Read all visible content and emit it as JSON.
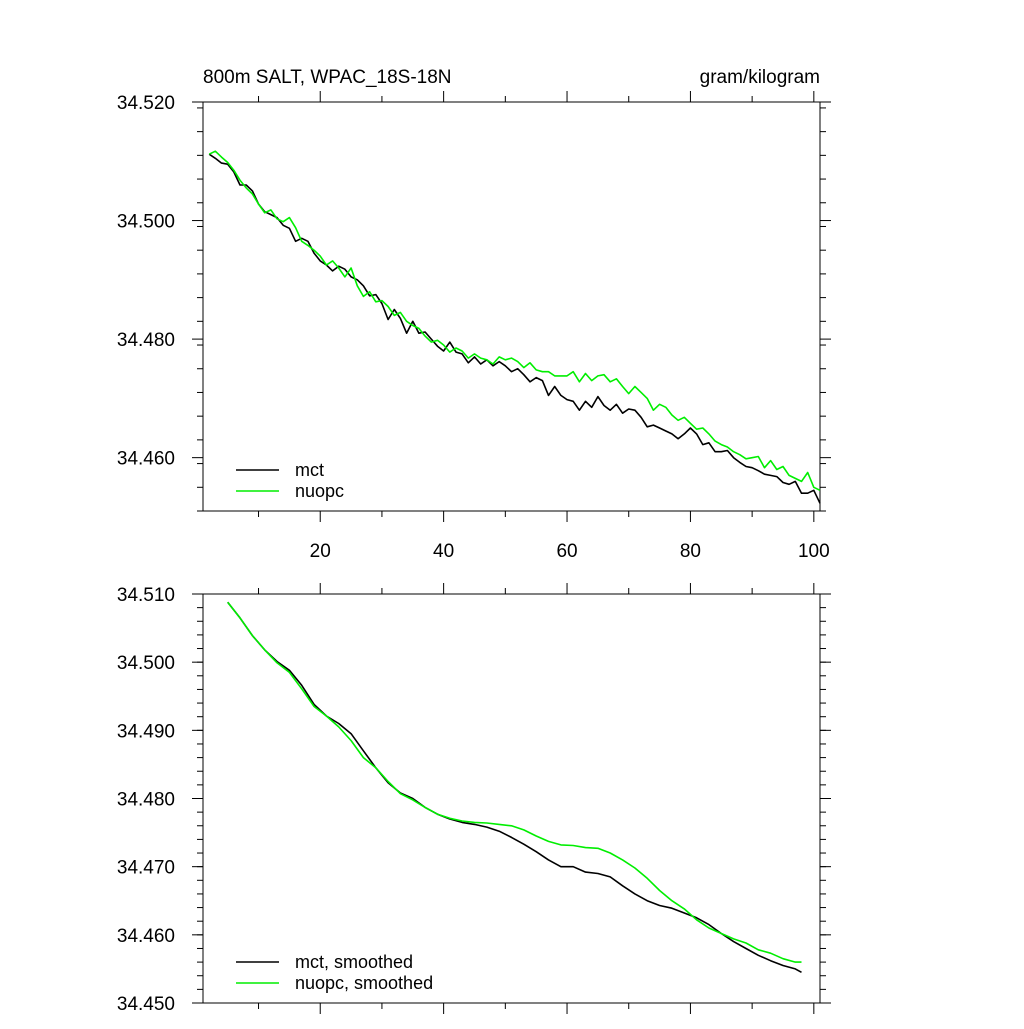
{
  "chart_data": [
    {
      "type": "line",
      "title": "800m SALT, WPAC_18S-18N",
      "units": "gram/kilogram",
      "xlabel": "",
      "ylabel": "",
      "xlim": [
        1,
        101
      ],
      "ylim": [
        34.451,
        34.52
      ],
      "xticks": [
        20,
        40,
        60,
        80,
        100
      ],
      "xtick_labels": [
        "20",
        "40",
        "60",
        "80",
        "100"
      ],
      "yticks": [
        34.46,
        34.48,
        34.5,
        34.52
      ],
      "ytick_labels": [
        "34.460",
        "34.480",
        "34.500",
        "34.520"
      ],
      "legend_position": "bottom-left",
      "series": [
        {
          "name": "mct",
          "color": "#000000",
          "x": [
            2,
            3,
            4,
            5,
            6,
            7,
            8,
            9,
            10,
            11,
            12,
            13,
            14,
            15,
            16,
            17,
            18,
            19,
            20,
            21,
            22,
            23,
            24,
            25,
            26,
            27,
            28,
            29,
            30,
            31,
            32,
            33,
            34,
            35,
            36,
            37,
            38,
            39,
            40,
            41,
            42,
            43,
            44,
            45,
            46,
            47,
            48,
            49,
            50,
            51,
            52,
            53,
            54,
            55,
            56,
            57,
            58,
            59,
            60,
            61,
            62,
            63,
            64,
            65,
            66,
            67,
            68,
            69,
            70,
            71,
            72,
            73,
            74,
            75,
            76,
            77,
            78,
            79,
            80,
            81,
            82,
            83,
            84,
            85,
            86,
            87,
            88,
            89,
            90,
            91,
            92,
            93,
            94,
            95,
            96,
            97,
            98,
            99,
            100,
            101
          ],
          "values": [
            34.5112,
            34.5105,
            34.5097,
            34.5095,
            34.5082,
            34.506,
            34.506,
            34.505,
            34.5028,
            34.5015,
            34.501,
            34.5005,
            34.4992,
            34.4987,
            34.4965,
            34.497,
            34.4965,
            34.4945,
            34.4932,
            34.4925,
            34.4915,
            34.4923,
            34.4918,
            34.4905,
            34.49,
            34.489,
            34.4873,
            34.4875,
            34.486,
            34.4833,
            34.485,
            34.4835,
            34.481,
            34.483,
            34.481,
            34.4812,
            34.48,
            34.4788,
            34.478,
            34.4795,
            34.4778,
            34.4775,
            34.476,
            34.477,
            34.4758,
            34.4765,
            34.4755,
            34.4762,
            34.4755,
            34.4745,
            34.475,
            34.474,
            34.4728,
            34.4735,
            34.473,
            34.4705,
            34.472,
            34.4705,
            34.4698,
            34.4695,
            34.468,
            34.4695,
            34.4685,
            34.4703,
            34.4688,
            34.468,
            34.469,
            34.4675,
            34.4682,
            34.468,
            34.4668,
            34.4652,
            34.4655,
            34.465,
            34.4645,
            34.464,
            34.4632,
            34.464,
            34.465,
            34.464,
            34.4622,
            34.4625,
            34.461,
            34.461,
            34.4612,
            34.46,
            34.4592,
            34.4585,
            34.4583,
            34.4578,
            34.4572,
            34.457,
            34.4568,
            34.4558,
            34.4555,
            34.456,
            34.454,
            34.454,
            34.4545,
            34.4523
          ]
        },
        {
          "name": "nuopc",
          "color": "#00ee00",
          "x": [
            2,
            3,
            4,
            5,
            6,
            7,
            8,
            9,
            10,
            11,
            12,
            13,
            14,
            15,
            16,
            17,
            18,
            19,
            20,
            21,
            22,
            23,
            24,
            25,
            26,
            27,
            28,
            29,
            30,
            31,
            32,
            33,
            34,
            35,
            36,
            37,
            38,
            39,
            40,
            41,
            42,
            43,
            44,
            45,
            46,
            47,
            48,
            49,
            50,
            51,
            52,
            53,
            54,
            55,
            56,
            57,
            58,
            59,
            60,
            61,
            62,
            63,
            64,
            65,
            66,
            67,
            68,
            69,
            70,
            71,
            72,
            73,
            74,
            75,
            76,
            77,
            78,
            79,
            80,
            81,
            82,
            83,
            84,
            85,
            86,
            87,
            88,
            89,
            90,
            91,
            92,
            93,
            94,
            95,
            96,
            97,
            98,
            99,
            100,
            101
          ],
          "values": [
            34.5112,
            34.5117,
            34.5107,
            34.5098,
            34.5085,
            34.5068,
            34.5055,
            34.5045,
            34.5028,
            34.5013,
            34.5018,
            34.5003,
            34.4998,
            34.5005,
            34.4988,
            34.4965,
            34.4958,
            34.495,
            34.494,
            34.4925,
            34.4932,
            34.492,
            34.4905,
            34.492,
            34.489,
            34.4872,
            34.488,
            34.4863,
            34.4865,
            34.4855,
            34.484,
            34.4845,
            34.483,
            34.4823,
            34.4818,
            34.4805,
            34.4795,
            34.4798,
            34.479,
            34.4778,
            34.4785,
            34.478,
            34.4768,
            34.4775,
            34.4768,
            34.4765,
            34.4758,
            34.477,
            34.4765,
            34.4768,
            34.4762,
            34.4752,
            34.476,
            34.4748,
            34.4745,
            34.4745,
            34.4738,
            34.4738,
            34.4738,
            34.4745,
            34.4728,
            34.4742,
            34.473,
            34.4738,
            34.474,
            34.4728,
            34.4733,
            34.472,
            34.4708,
            34.472,
            34.471,
            34.47,
            34.468,
            34.469,
            34.4685,
            34.4672,
            34.4663,
            34.4668,
            34.4658,
            34.4648,
            34.465,
            34.464,
            34.4628,
            34.4622,
            34.4618,
            34.461,
            34.4605,
            34.4598,
            34.46,
            34.4602,
            34.4583,
            34.4595,
            34.458,
            34.4585,
            34.457,
            34.4565,
            34.456,
            34.4575,
            34.455,
            34.4545
          ]
        }
      ]
    },
    {
      "type": "line",
      "title": "",
      "xlabel": "",
      "ylabel": "",
      "xlim": [
        1,
        101
      ],
      "ylim": [
        34.45,
        34.51
      ],
      "xticks": [
        20,
        40,
        60,
        80,
        100
      ],
      "yticks": [
        34.45,
        34.46,
        34.47,
        34.48,
        34.49,
        34.5,
        34.51
      ],
      "ytick_labels": [
        "34.450",
        "34.460",
        "34.470",
        "34.480",
        "34.490",
        "34.500",
        "34.510"
      ],
      "legend_position": "bottom-left",
      "series": [
        {
          "name": "mct, smoothed",
          "color": "#000000",
          "x": [
            5,
            7,
            9,
            11,
            13,
            15,
            17,
            19,
            21,
            23,
            25,
            27,
            29,
            31,
            33,
            35,
            37,
            39,
            41,
            43,
            45,
            47,
            49,
            51,
            53,
            55,
            57,
            59,
            61,
            63,
            65,
            67,
            69,
            71,
            73,
            75,
            77,
            79,
            81,
            83,
            85,
            87,
            89,
            91,
            93,
            95,
            97,
            98
          ],
          "values": [
            34.5088,
            34.5065,
            34.5039,
            34.5018,
            34.5001,
            34.4988,
            34.4966,
            34.4938,
            34.4921,
            34.491,
            34.4895,
            34.487,
            34.4845,
            34.4823,
            34.4808,
            34.48,
            34.4787,
            34.4777,
            34.477,
            34.4765,
            34.4762,
            34.4758,
            34.4752,
            34.4743,
            34.4733,
            34.4722,
            34.471,
            34.47,
            34.47,
            34.4692,
            34.469,
            34.4685,
            34.4672,
            34.466,
            34.465,
            34.4643,
            34.4639,
            34.4632,
            34.4625,
            34.4615,
            34.4602,
            34.459,
            34.458,
            34.457,
            34.4562,
            34.4555,
            34.455,
            34.4545
          ]
        },
        {
          "name": "nuopc, smoothed",
          "color": "#00ee00",
          "x": [
            5,
            7,
            9,
            11,
            13,
            15,
            17,
            19,
            21,
            23,
            25,
            27,
            29,
            31,
            33,
            35,
            37,
            39,
            41,
            43,
            45,
            47,
            49,
            51,
            53,
            55,
            57,
            59,
            61,
            63,
            65,
            67,
            69,
            71,
            73,
            75,
            77,
            79,
            81,
            83,
            85,
            87,
            89,
            91,
            93,
            95,
            97,
            98
          ],
          "values": [
            34.5088,
            34.5065,
            34.5039,
            34.5018,
            34.4999,
            34.4985,
            34.4961,
            34.4935,
            34.4921,
            34.4905,
            34.4885,
            34.486,
            34.4845,
            34.4825,
            34.4807,
            34.4798,
            34.4787,
            34.4777,
            34.4771,
            34.4767,
            34.4765,
            34.4764,
            34.4762,
            34.476,
            34.4754,
            34.4745,
            34.4737,
            34.4732,
            34.4731,
            34.4728,
            34.4727,
            34.472,
            34.471,
            34.4698,
            34.4683,
            34.4665,
            34.465,
            34.4638,
            34.4622,
            34.461,
            34.4602,
            34.4594,
            34.4588,
            34.4578,
            34.4573,
            34.4565,
            34.456,
            34.456
          ]
        }
      ]
    }
  ]
}
